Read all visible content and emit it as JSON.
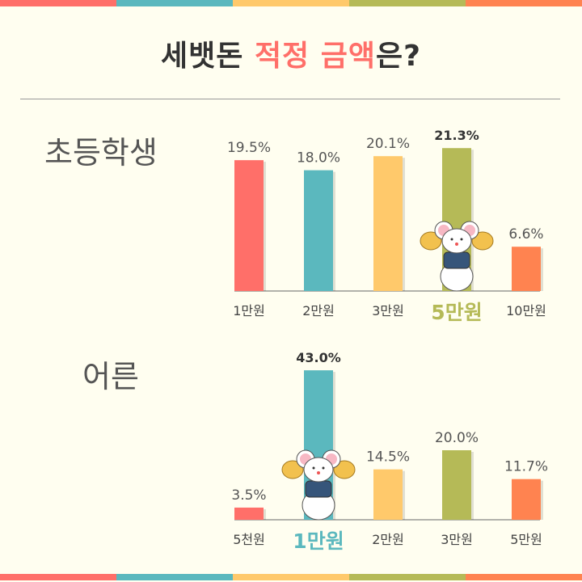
{
  "title": {
    "part1": "세뱃돈 ",
    "highlight": "적정 금액",
    "part2": "은?"
  },
  "stripe_colors": [
    "#FF6F69",
    "#5BB8BE",
    "#FFC96B",
    "#B5BA57",
    "#FF8350"
  ],
  "chart_data": [
    {
      "type": "bar",
      "title": "초등학생",
      "categories": [
        "1만원",
        "2만원",
        "3만원",
        "5만원",
        "10만원"
      ],
      "values": [
        19.5,
        18.0,
        20.1,
        21.3,
        6.6
      ],
      "labels": [
        "19.5%",
        "18.0%",
        "20.1%",
        "21.3%",
        "6.6%"
      ],
      "highlight_index": 3,
      "colors": [
        "#FF6F69",
        "#5BB8BE",
        "#FFC96B",
        "#B5BA57",
        "#FF8350"
      ],
      "ylim": [
        0,
        22
      ]
    },
    {
      "type": "bar",
      "title": "어른",
      "categories": [
        "5천원",
        "1만원",
        "2만원",
        "3만원",
        "5만원"
      ],
      "values": [
        3.5,
        43.0,
        14.5,
        20.0,
        11.7
      ],
      "labels": [
        "3.5%",
        "43.0%",
        "14.5%",
        "20.0%",
        "11.7%"
      ],
      "highlight_index": 1,
      "colors": [
        "#FF6F69",
        "#5BB8BE",
        "#FFC96B",
        "#B5BA57",
        "#FF8350"
      ],
      "ylim": [
        0,
        43
      ]
    }
  ]
}
